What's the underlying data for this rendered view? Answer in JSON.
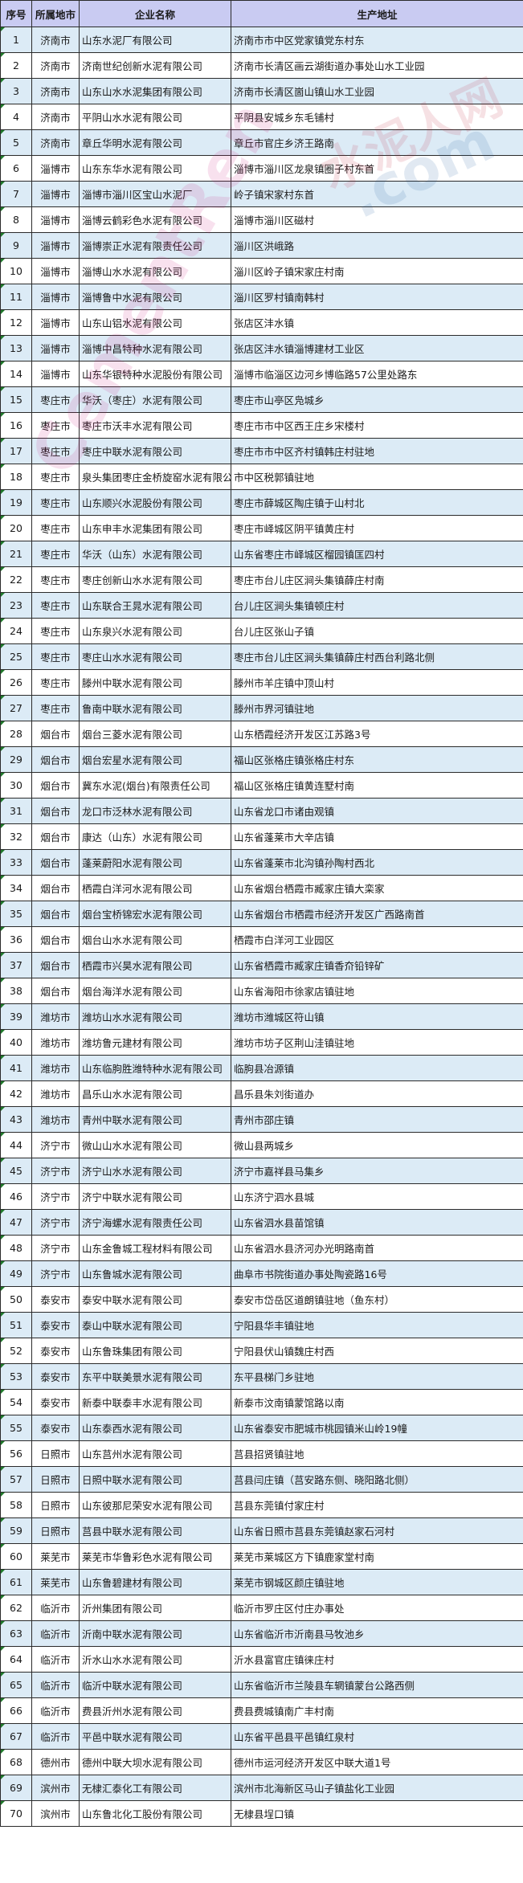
{
  "table": {
    "headers": [
      "序号",
      "所属地市",
      "企业名称",
      "生产地址"
    ],
    "rows": [
      [
        "1",
        "济南市",
        "山东水泥厂有限公司",
        "济南市市中区党家镇党东村东"
      ],
      [
        "2",
        "济南市",
        "济南世纪创新水泥有限公司",
        "济南市长清区画云湖街道办事处山水工业园"
      ],
      [
        "3",
        "济南市",
        "山东山水水泥集团有限公司",
        "济南市长清区崮山镇山水工业园"
      ],
      [
        "4",
        "济南市",
        "平阴山水水泥有限公司",
        "平阴县安城乡东毛铺村"
      ],
      [
        "5",
        "济南市",
        "章丘华明水泥有限公司",
        "章丘市官庄乡济王路南"
      ],
      [
        "6",
        "淄博市",
        "山东东华水泥有限公司",
        "淄博市淄川区龙泉镇圈子村东首"
      ],
      [
        "7",
        "淄博市",
        "淄博市淄川区宝山水泥厂",
        "岭子镇宋家村东首"
      ],
      [
        "8",
        "淄博市",
        "淄博云鹤彩色水泥有限公司",
        "淄博市淄川区磁村"
      ],
      [
        "9",
        "淄博市",
        "淄博崇正水泥有限责任公司",
        "淄川区洪峨路"
      ],
      [
        "10",
        "淄博市",
        "淄博山水水泥有限公司",
        "淄川区岭子镇宋家庄村南"
      ],
      [
        "11",
        "淄博市",
        "淄博鲁中水泥有限公司",
        "淄川区罗村镇南韩村"
      ],
      [
        "12",
        "淄博市",
        "山东山铝水泥有限公司",
        "张店区沣水镇"
      ],
      [
        "13",
        "淄博市",
        "淄博中昌特种水泥有限公司",
        "张店区沣水镇淄博建材工业区"
      ],
      [
        "14",
        "淄博市",
        "山东华银特种水泥股份有限公司",
        "淄博市临淄区边河乡博临路57公里处路东"
      ],
      [
        "15",
        "枣庄市",
        "华沃（枣庄）水泥有限公司",
        "枣庄市山亭区凫城乡"
      ],
      [
        "16",
        "枣庄市",
        "枣庄市沃丰水泥有限公司",
        "枣庄市市中区西王庄乡宋楼村"
      ],
      [
        "17",
        "枣庄市",
        "枣庄中联水泥有限公司",
        "枣庄市市中区齐村镇韩庄村驻地"
      ],
      [
        "18",
        "枣庄市",
        "泉头集团枣庄金桥旋窑水泥有限公司",
        "市中区税郭镇驻地"
      ],
      [
        "19",
        "枣庄市",
        "山东顺兴水泥股份有限公司",
        "枣庄市薛城区陶庄镇于山村北"
      ],
      [
        "20",
        "枣庄市",
        "山东申丰水泥集团有限公司",
        "枣庄市峄城区阴平镇黄庄村"
      ],
      [
        "21",
        "枣庄市",
        "华沃（山东）水泥有限公司",
        "山东省枣庄市峄城区榴园镇匡四村"
      ],
      [
        "22",
        "枣庄市",
        "枣庄创新山水水泥有限公司",
        "枣庄市台儿庄区涧头集镇薛庄村南"
      ],
      [
        "23",
        "枣庄市",
        "山东联合王晁水泥有限公司",
        "台儿庄区涧头集镇顿庄村"
      ],
      [
        "24",
        "枣庄市",
        "山东泉兴水泥有限公司",
        "台儿庄区张山子镇"
      ],
      [
        "25",
        "枣庄市",
        "枣庄山水水泥有限公司",
        "枣庄市台儿庄区涧头集镇薛庄村西台利路北侧"
      ],
      [
        "26",
        "枣庄市",
        "滕州中联水泥有限公司",
        "滕州市羊庄镇中顶山村"
      ],
      [
        "27",
        "枣庄市",
        "鲁南中联水泥有限公司",
        "滕州市界河镇驻地"
      ],
      [
        "28",
        "烟台市",
        "烟台三菱水泥有限公司",
        "山东栖霞经济开发区江苏路3号"
      ],
      [
        "29",
        "烟台市",
        "烟台宏星水泥有限公司",
        "福山区张格庄镇张格庄村东"
      ],
      [
        "30",
        "烟台市",
        "冀东水泥(烟台)有限责任公司",
        "福山区张格庄镇黄连墅村南"
      ],
      [
        "31",
        "烟台市",
        "龙口市泛林水泥有限公司",
        "山东省龙口市诸由观镇"
      ],
      [
        "32",
        "烟台市",
        "康达（山东）水泥有限公司",
        "山东省蓬莱市大辛店镇"
      ],
      [
        "33",
        "烟台市",
        "蓬莱蔚阳水泥有限公司",
        "山东省蓬莱市北沟镇孙陶村西北"
      ],
      [
        "34",
        "烟台市",
        "栖霞白洋河水泥有限公司",
        "山东省烟台栖霞市臧家庄镇大栾家"
      ],
      [
        "35",
        "烟台市",
        "烟台宝桥锦宏水泥有限公司",
        "山东省烟台市栖霞市经济开发区广西路南首"
      ],
      [
        "36",
        "烟台市",
        "烟台山水水泥有限公司",
        "栖霞市白洋河工业园区"
      ],
      [
        "37",
        "烟台市",
        "栖霞市兴昊水泥有限公司",
        "山东省栖霞市臧家庄镇香夼铅锌矿"
      ],
      [
        "38",
        "烟台市",
        "烟台海洋水泥有限公司",
        "山东省海阳市徐家店镇驻地"
      ],
      [
        "39",
        "潍坊市",
        "潍坊山水水泥有限公司",
        "潍坊市潍城区符山镇"
      ],
      [
        "40",
        "潍坊市",
        "潍坊鲁元建材有限公司",
        "潍坊市坊子区荆山洼镇驻地"
      ],
      [
        "41",
        "潍坊市",
        "山东临朐胜潍特种水泥有限公司",
        "临朐县冶源镇"
      ],
      [
        "42",
        "潍坊市",
        "昌乐山水水泥有限公司",
        "昌乐县朱刘街道办"
      ],
      [
        "43",
        "潍坊市",
        "青州中联水泥有限公司",
        "青州市邵庄镇"
      ],
      [
        "44",
        "济宁市",
        "微山山水水泥有限公司",
        "微山县两城乡"
      ],
      [
        "45",
        "济宁市",
        "济宁山水水泥有限公司",
        "济宁市嘉祥县马集乡"
      ],
      [
        "46",
        "济宁市",
        "济宁中联水泥有限公司",
        "山东济宁泗水县城"
      ],
      [
        "47",
        "济宁市",
        "济宁海螺水泥有限责任公司",
        "山东省泗水县苗馆镇"
      ],
      [
        "48",
        "济宁市",
        "山东金鲁城工程材料有限公司",
        "山东省泗水县济河办光明路南首"
      ],
      [
        "49",
        "济宁市",
        "山东鲁城水泥有限公司",
        "曲阜市书院街道办事处陶瓷路16号"
      ],
      [
        "50",
        "泰安市",
        "泰安中联水泥有限公司",
        "泰安市岱岳区道朗镇驻地（鱼东村）"
      ],
      [
        "51",
        "泰安市",
        "泰山中联水泥有限公司",
        "宁阳县华丰镇驻地"
      ],
      [
        "52",
        "泰安市",
        "山东鲁珠集团有限公司",
        "宁阳县伏山镇魏庄村西"
      ],
      [
        "53",
        "泰安市",
        "东平中联美景水泥有限公司",
        "东平县梯门乡驻地"
      ],
      [
        "54",
        "泰安市",
        "新泰中联泰丰水泥有限公司",
        "新泰市汶南镇蒙馆路以南"
      ],
      [
        "55",
        "泰安市",
        "山东泰西水泥有限公司",
        "山东省泰安市肥城市桃园镇米山岭19幢"
      ],
      [
        "56",
        "日照市",
        "山东莒州水泥有限公司",
        "莒县招贤镇驻地"
      ],
      [
        "57",
        "日照市",
        "日照中联水泥有限公司",
        "莒县闫庄镇（莒安路东侧、晓阳路北侧）"
      ],
      [
        "58",
        "日照市",
        "山东彼那尼荣安水泥有限公司",
        "莒县东莞镇付家庄村"
      ],
      [
        "59",
        "日照市",
        "莒县中联水泥有限公司",
        "山东省日照市莒县东莞镇赵家石河村"
      ],
      [
        "60",
        "莱芜市",
        "莱芜市华鲁彩色水泥有限公司",
        "莱芜市莱城区方下镇鹿家堂村南"
      ],
      [
        "61",
        "莱芜市",
        "山东鲁碧建材有限公司",
        "莱芜市钢城区颜庄镇驻地"
      ],
      [
        "62",
        "临沂市",
        "沂州集团有限公司",
        "临沂市罗庄区付庄办事处"
      ],
      [
        "63",
        "临沂市",
        "沂南中联水泥有限公司",
        "山东省临沂市沂南县马牧池乡"
      ],
      [
        "64",
        "临沂市",
        "沂水山水水泥有限公司",
        "沂水县富官庄镇徕庄村"
      ],
      [
        "65",
        "临沂市",
        "临沂中联水泥有限公司",
        "山东省临沂市兰陵县车辋镇蒙台公路西侧"
      ],
      [
        "66",
        "临沂市",
        "费县沂州水泥有限公司",
        "费县费城镇南广丰村南"
      ],
      [
        "67",
        "临沂市",
        "平邑中联水泥有限公司",
        "山东省平邑县平邑镇红泉村"
      ],
      [
        "68",
        "德州市",
        "德州中联大坝水泥有限公司",
        "德州市运河经济开发区中联大道1号"
      ],
      [
        "69",
        "滨州市",
        "无棣汇泰化工有限公司",
        "滨州市北海新区马山子镇盐化工业园"
      ],
      [
        "70",
        "滨州市",
        "山东鲁北化工股份有限公司",
        "无棣县埕口镇"
      ]
    ]
  },
  "watermark": {
    "text_cn": "水泥人网",
    "text_en": "CementRen",
    "text_com": ".com"
  },
  "colors": {
    "header_bg": "#c9cbf2",
    "odd_row_bg": "#dcebf6",
    "even_row_bg": "#ffffff",
    "border": "#2b2b2b",
    "marker": "#1f7a2a"
  }
}
